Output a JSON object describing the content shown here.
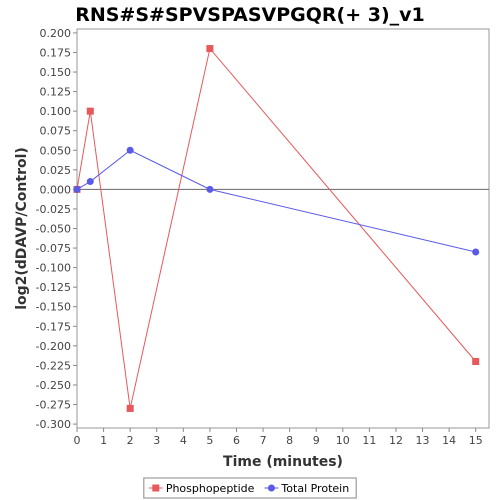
{
  "chart_data": {
    "type": "line",
    "title": "RNS#S#SPVSPASVPGQR(+ 3)_v1",
    "xlabel": "Time (minutes)",
    "ylabel": "log2(dDAVP/Control)",
    "xlim": [
      0,
      15.5
    ],
    "ylim": [
      -0.305,
      0.205
    ],
    "x_ticks": [
      0,
      1,
      2,
      3,
      4,
      5,
      6,
      7,
      8,
      9,
      10,
      11,
      12,
      13,
      14,
      15
    ],
    "y_ticks": [
      0.2,
      0.175,
      0.15,
      0.125,
      0.1,
      0.075,
      0.05,
      0.025,
      0.0,
      -0.025,
      -0.05,
      -0.075,
      -0.1,
      -0.125,
      -0.15,
      -0.175,
      -0.2,
      -0.225,
      -0.25,
      -0.275,
      -0.3
    ],
    "y_tick_labels": [
      "0.200",
      "0.175",
      "0.150",
      "0.125",
      "0.100",
      "0.075",
      "0.050",
      "0.025",
      "0.000",
      "-0.025",
      "-0.050",
      "-0.075",
      "-0.100",
      "-0.125",
      "-0.150",
      "-0.175",
      "-0.200",
      "-0.225",
      "-0.250",
      "-0.275",
      "-0.300"
    ],
    "zero_line": true,
    "grid": false,
    "legend_position": "bottom",
    "series": [
      {
        "name": "Phosphopeptide",
        "color": "#e8585a",
        "marker": "square",
        "x": [
          0,
          0.5,
          2,
          5,
          15
        ],
        "y": [
          0.0,
          0.1,
          -0.28,
          0.18,
          -0.22
        ]
      },
      {
        "name": "Total Protein",
        "color": "#5a5ae8",
        "marker": "circle",
        "x": [
          0,
          0.5,
          2,
          5,
          15
        ],
        "y": [
          0.0,
          0.01,
          0.05,
          0.0,
          -0.08
        ]
      }
    ]
  }
}
